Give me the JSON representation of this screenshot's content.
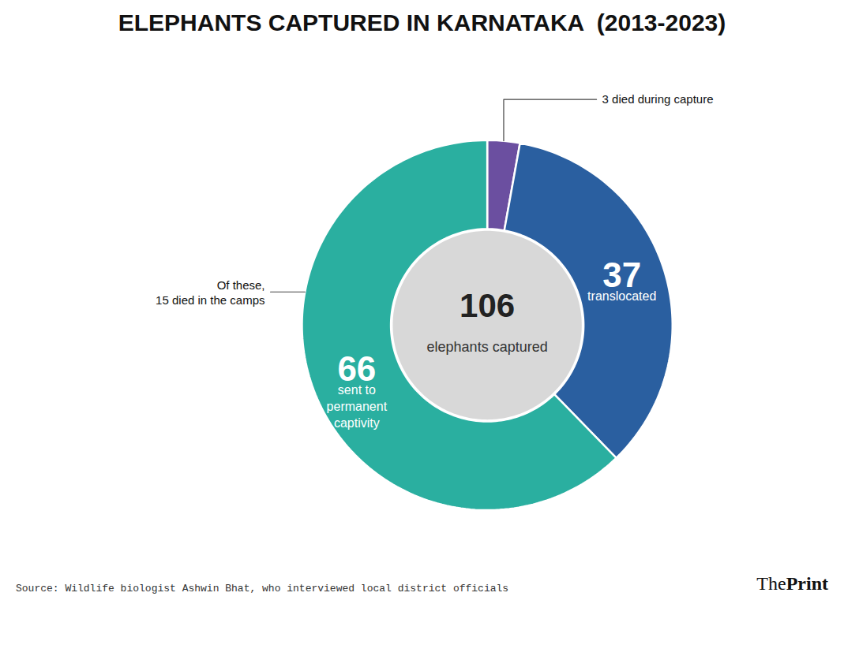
{
  "chart_data": {
    "type": "donut",
    "title": "ELEPHANTS CAPTURED IN KARNATAKA  (2013-2023)",
    "categories": [
      null,
      "translocated",
      "sent to\npermanent\ncaptivity"
    ],
    "values": [
      3,
      37,
      66
    ],
    "colors": [
      "#6b4fa0",
      "#2a5fa0",
      "#2aafa0"
    ],
    "data_labels": true,
    "value_labels": [
      null,
      "37",
      "66"
    ],
    "total": 106,
    "total_label": "elephants captured",
    "annotations": [
      "3 died during capture",
      "Of these,\n15 died in the camps"
    ],
    "source": "Source: Wildlife biologist Ashwin Bhat, who interviewed local district officials",
    "logo": [
      "The",
      "Print"
    ]
  }
}
